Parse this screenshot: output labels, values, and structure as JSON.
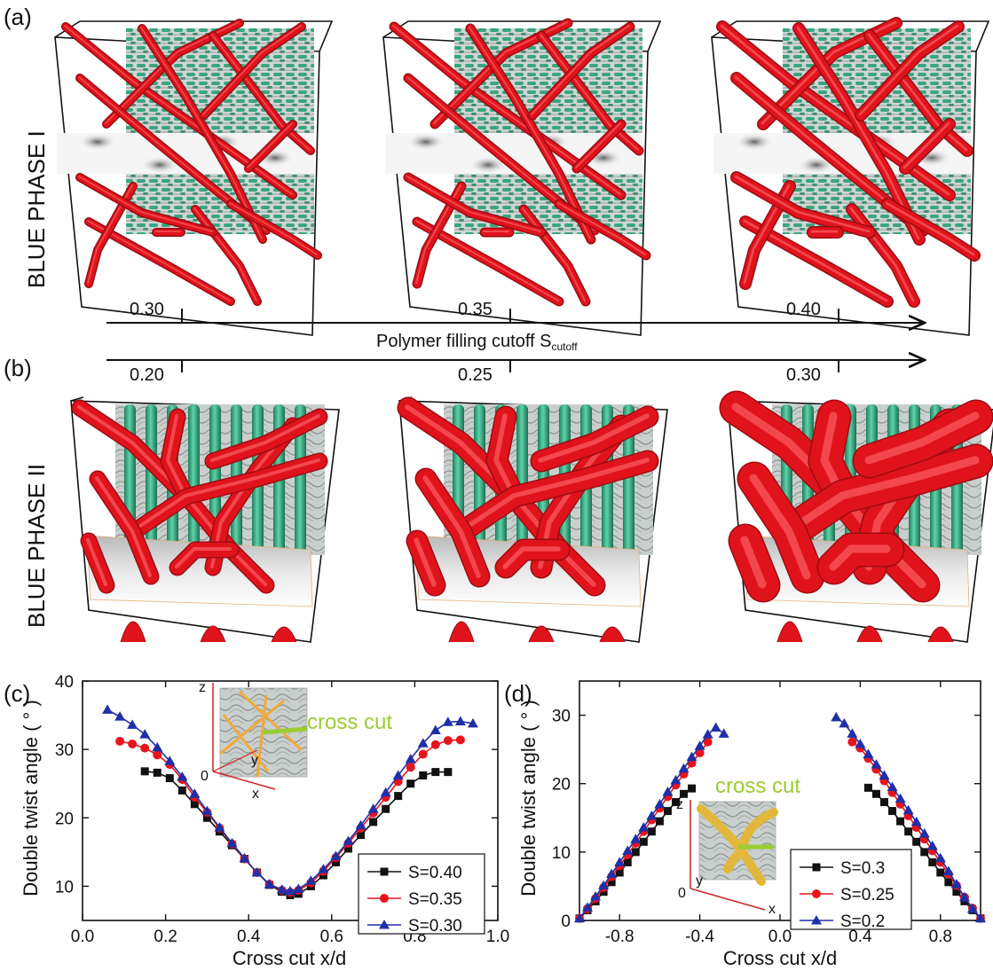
{
  "panels": {
    "a": "(a)",
    "b": "(b)",
    "c": "(c)",
    "d": "(d)"
  },
  "rows": {
    "bp1": "BLUE PHASE I",
    "bp2": "BLUE PHASE II"
  },
  "arrow_axis": {
    "label_main": "Polymer filling cutoff S",
    "label_sub": "cutoff",
    "top_ticks": [
      "0.30",
      "0.35",
      "0.40"
    ],
    "bottom_ticks": [
      "0.20",
      "0.25",
      "0.30"
    ]
  },
  "inset_c": {
    "cross_cut": "cross cut",
    "z": "z",
    "y": "y",
    "x": "x",
    "zero": "0"
  },
  "inset_d": {
    "cross_cut": "cross cut",
    "z": "z",
    "y": "y",
    "x": "x",
    "zero": "0"
  },
  "colors": {
    "red_tube": "#e0131c",
    "green_rod": "#3fb08a",
    "lime_label": "#9acd32",
    "s1": "#111111",
    "s2": "#e8141c",
    "s3": "#1f2fa8"
  },
  "chart_data": [
    {
      "type": "line",
      "panel": "c",
      "xlabel": "Cross cut x/d",
      "ylabel": "Double twist angle ( ° )",
      "xlim": [
        0.0,
        1.0
      ],
      "ylim": [
        5,
        40
      ],
      "xticks": [
        0.0,
        0.2,
        0.4,
        0.6,
        0.8,
        1.0
      ],
      "xtick_labels": [
        "0.0",
        "0.2",
        "0.4",
        "0.6",
        "0.8",
        "1.0"
      ],
      "yticks": [
        10,
        20,
        30,
        40
      ],
      "ytick_labels": [
        "10",
        "20",
        "30",
        "40"
      ],
      "legend_position": "bottom-right",
      "series": [
        {
          "name": "S=0.40",
          "color": "#111111",
          "marker": "square",
          "x": [
            0.15,
            0.18,
            0.21,
            0.24,
            0.27,
            0.3,
            0.33,
            0.36,
            0.39,
            0.42,
            0.45,
            0.48,
            0.5,
            0.52,
            0.55,
            0.58,
            0.61,
            0.64,
            0.67,
            0.7,
            0.73,
            0.76,
            0.79,
            0.82,
            0.85,
            0.88
          ],
          "y": [
            26.8,
            26.6,
            25.8,
            24.0,
            22.0,
            20.0,
            18.0,
            16.0,
            14.0,
            12.0,
            10.2,
            9.2,
            8.7,
            8.9,
            10.0,
            11.6,
            13.5,
            15.5,
            17.5,
            19.4,
            21.3,
            23.2,
            25.0,
            26.2,
            26.7,
            26.7
          ]
        },
        {
          "name": "S=0.35",
          "color": "#e8141c",
          "marker": "circle",
          "x": [
            0.09,
            0.12,
            0.15,
            0.18,
            0.21,
            0.24,
            0.27,
            0.3,
            0.33,
            0.36,
            0.39,
            0.42,
            0.45,
            0.48,
            0.5,
            0.52,
            0.55,
            0.58,
            0.61,
            0.64,
            0.67,
            0.7,
            0.73,
            0.76,
            0.79,
            0.82,
            0.85,
            0.88,
            0.91
          ],
          "y": [
            31.2,
            30.8,
            30.2,
            29.2,
            27.8,
            25.6,
            23.0,
            20.8,
            18.5,
            16.2,
            14.0,
            12.0,
            10.3,
            9.4,
            9.1,
            9.4,
            10.5,
            12.2,
            14.2,
            16.3,
            18.5,
            20.7,
            23.0,
            25.3,
            27.4,
            29.3,
            30.7,
            31.3,
            31.4
          ]
        },
        {
          "name": "S=0.30",
          "color": "#1f2fa8",
          "marker": "triangle",
          "x": [
            0.06,
            0.09,
            0.12,
            0.15,
            0.18,
            0.21,
            0.24,
            0.27,
            0.3,
            0.33,
            0.36,
            0.39,
            0.42,
            0.45,
            0.48,
            0.5,
            0.52,
            0.55,
            0.58,
            0.61,
            0.64,
            0.67,
            0.7,
            0.73,
            0.76,
            0.79,
            0.82,
            0.85,
            0.88,
            0.91,
            0.94
          ],
          "y": [
            35.8,
            34.8,
            33.6,
            32.2,
            30.3,
            28.3,
            26.0,
            23.5,
            21.0,
            18.6,
            16.3,
            14.1,
            12.0,
            10.3,
            9.5,
            9.3,
            9.6,
            10.8,
            12.5,
            14.4,
            16.6,
            18.9,
            21.3,
            23.7,
            26.2,
            28.6,
            30.9,
            32.8,
            34.0,
            34.1,
            33.8
          ]
        }
      ]
    },
    {
      "type": "line",
      "panel": "d",
      "xlabel": "Cross cut x/d",
      "ylabel": "Double twist angle ( ° )",
      "xlim": [
        -1.0,
        1.0
      ],
      "ylim": [
        0,
        35
      ],
      "xticks": [
        -0.8,
        -0.4,
        0.0,
        0.4,
        0.8
      ],
      "xtick_labels": [
        "-0.8",
        "-0.4",
        "0.0",
        "0.4",
        "0.8"
      ],
      "yticks": [
        0,
        10,
        20,
        30
      ],
      "ytick_labels": [
        "0",
        "10",
        "20",
        "30"
      ],
      "legend_position": "bottom-right",
      "series": [
        {
          "name": "S=0.3",
          "color": "#111111",
          "marker": "square",
          "x": [
            -1.0,
            -0.96,
            -0.92,
            -0.88,
            -0.84,
            -0.8,
            -0.76,
            -0.72,
            -0.68,
            -0.64,
            -0.6,
            -0.56,
            -0.52,
            -0.48,
            -0.44,
            0.44,
            0.48,
            0.52,
            0.56,
            0.6,
            0.64,
            0.68,
            0.72,
            0.76,
            0.8,
            0.84,
            0.88,
            0.92,
            0.96,
            1.0
          ],
          "y": [
            0.3,
            1.5,
            2.8,
            4.2,
            5.6,
            7.0,
            8.5,
            10.0,
            11.5,
            13.0,
            14.5,
            16.0,
            17.3,
            18.5,
            19.3,
            19.4,
            18.5,
            17.3,
            16.0,
            14.5,
            13.0,
            11.5,
            10.0,
            8.5,
            7.0,
            5.6,
            4.2,
            2.8,
            1.5,
            0.3
          ]
        },
        {
          "name": "S=0.25",
          "color": "#e8141c",
          "marker": "circle",
          "x": [
            -1.0,
            -0.96,
            -0.92,
            -0.88,
            -0.84,
            -0.8,
            -0.76,
            -0.72,
            -0.68,
            -0.64,
            -0.6,
            -0.56,
            -0.52,
            -0.48,
            -0.44,
            -0.4,
            -0.36,
            0.36,
            0.4,
            0.44,
            0.48,
            0.52,
            0.56,
            0.6,
            0.64,
            0.68,
            0.72,
            0.76,
            0.8,
            0.84,
            0.88,
            0.92,
            0.96,
            1.0
          ],
          "y": [
            0.3,
            1.7,
            3.2,
            4.8,
            6.4,
            8.0,
            9.6,
            11.3,
            13.0,
            14.7,
            16.4,
            18.1,
            19.8,
            21.4,
            23.0,
            24.5,
            26.1,
            26.1,
            25.2,
            23.7,
            22.1,
            20.4,
            18.7,
            17.0,
            15.3,
            13.6,
            11.9,
            10.2,
            8.5,
            6.8,
            5.1,
            3.4,
            1.8,
            0.3
          ]
        },
        {
          "name": "S=0.2",
          "color": "#1f2fa8",
          "marker": "triangle",
          "x": [
            -1.0,
            -0.96,
            -0.92,
            -0.88,
            -0.84,
            -0.8,
            -0.76,
            -0.72,
            -0.68,
            -0.64,
            -0.6,
            -0.56,
            -0.52,
            -0.48,
            -0.44,
            -0.4,
            -0.36,
            -0.32,
            -0.28,
            0.28,
            0.32,
            0.36,
            0.4,
            0.44,
            0.48,
            0.52,
            0.56,
            0.6,
            0.64,
            0.68,
            0.72,
            0.76,
            0.8,
            0.84,
            0.88,
            0.92,
            0.96,
            1.0
          ],
          "y": [
            0.3,
            1.9,
            3.5,
            5.1,
            6.8,
            8.5,
            10.2,
            11.9,
            13.6,
            15.3,
            17.0,
            18.8,
            20.5,
            22.2,
            23.9,
            25.5,
            27.2,
            28.2,
            27.3,
            29.7,
            28.8,
            27.3,
            25.8,
            24.3,
            22.8,
            21.2,
            19.5,
            17.8,
            16.1,
            14.4,
            12.7,
            10.9,
            9.1,
            7.2,
            5.3,
            3.4,
            1.7,
            0.3
          ]
        }
      ]
    }
  ]
}
